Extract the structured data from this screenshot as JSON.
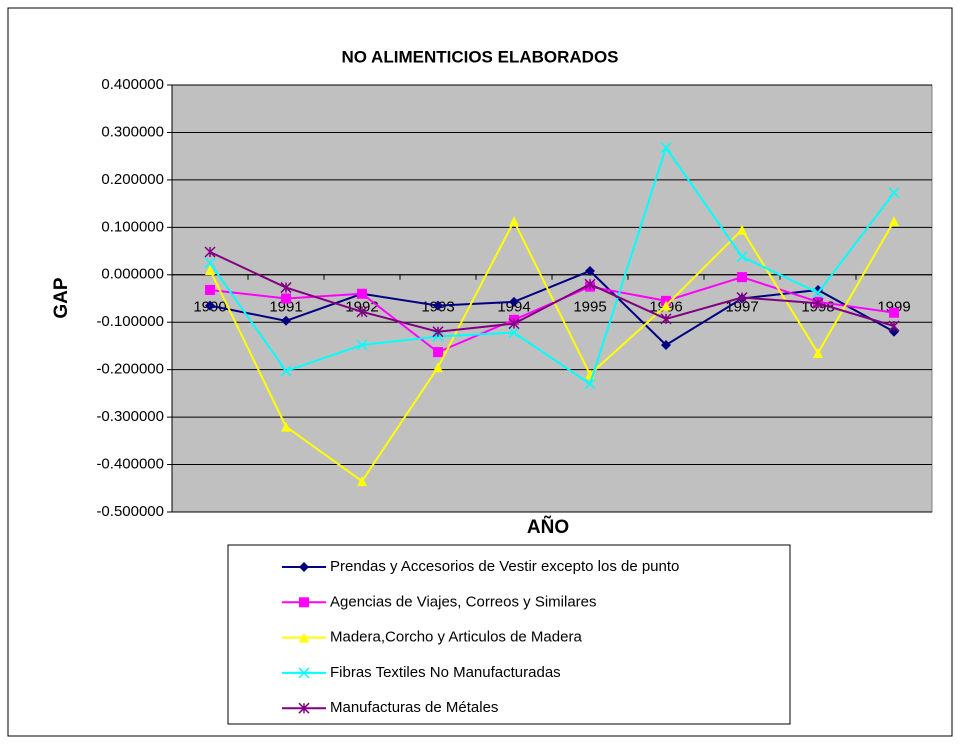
{
  "chart_data": {
    "type": "line",
    "title": "NO ALIMENTICIOS ELABORADOS",
    "x_label": "AÑO",
    "y_label": "GAP",
    "categories": [
      "1990",
      "1991",
      "1992",
      "1993",
      "1994",
      "1995",
      "1996",
      "1997",
      "1998",
      "1999"
    ],
    "series": [
      {
        "name": "Prendas y Accesorios de Vestir excepto los de punto",
        "color": "#000080",
        "marker": "diamond",
        "values": [
          -0.065,
          -0.097,
          -0.04,
          -0.065,
          -0.057,
          0.008,
          -0.148,
          -0.05,
          -0.032,
          -0.12
        ]
      },
      {
        "name": "Agencias de Viajes, Correos y Similares",
        "color": "#ff00ff",
        "marker": "square",
        "values": [
          -0.032,
          -0.05,
          -0.04,
          -0.163,
          -0.095,
          -0.025,
          -0.055,
          -0.005,
          -0.057,
          -0.08
        ]
      },
      {
        "name": "Madera,Corcho y  Articulos de Madera",
        "color": "#ffff00",
        "marker": "triangle",
        "values": [
          0.01,
          -0.32,
          -0.435,
          -0.195,
          0.113,
          -0.21,
          -0.065,
          0.095,
          -0.165,
          0.113
        ]
      },
      {
        "name": "Fibras Textiles No Manufacturadas",
        "color": "#00ffff",
        "marker": "x",
        "values": [
          0.025,
          -0.203,
          -0.148,
          -0.13,
          -0.122,
          -0.23,
          0.268,
          0.038,
          -0.038,
          0.173
        ]
      },
      {
        "name": "Manufacturas de Métales",
        "color": "#800080",
        "marker": "star",
        "values": [
          0.048,
          -0.027,
          -0.078,
          -0.12,
          -0.103,
          -0.02,
          -0.093,
          -0.048,
          -0.06,
          -0.108
        ]
      }
    ],
    "ylim": [
      -0.5,
      0.4
    ],
    "yticks": [
      {
        "value": -0.5,
        "label": "-0.500000"
      },
      {
        "value": -0.4,
        "label": "-0.400000"
      },
      {
        "value": -0.3,
        "label": "-0.300000"
      },
      {
        "value": -0.2,
        "label": "-0.200000"
      },
      {
        "value": -0.1,
        "label": "-0.100000"
      },
      {
        "value": 0,
        "label": "0.000000"
      },
      {
        "value": 0.1,
        "label": "0.100000"
      },
      {
        "value": 0.2,
        "label": "0.200000"
      },
      {
        "value": 0.3,
        "label": "0.300000"
      },
      {
        "value": 0.4,
        "label": "0.400000"
      }
    ],
    "grid": true,
    "legend": "bottom"
  }
}
